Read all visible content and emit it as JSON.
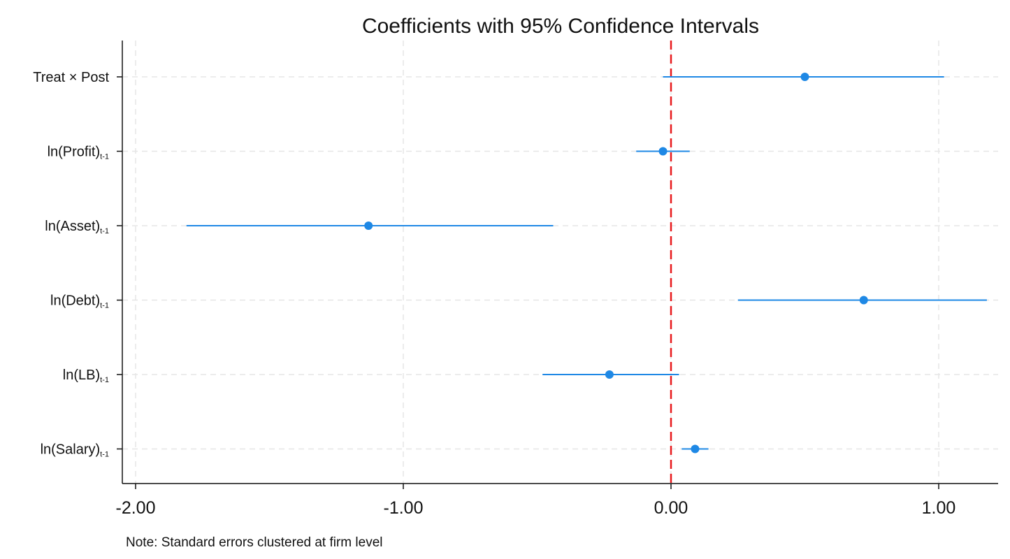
{
  "chart_data": {
    "type": "scatter",
    "subtype": "coefficient-plot",
    "orientation": "horizontal",
    "title": "Coefficients with 95% Confidence Intervals",
    "note": "Note: Standard errors clustered at firm level",
    "xlim": [
      -2.05,
      1.22
    ],
    "x_ticks": [
      {
        "value": -2.0,
        "label": "-2.00"
      },
      {
        "value": -1.0,
        "label": "-1.00"
      },
      {
        "value": 0.0,
        "label": "0.00"
      },
      {
        "value": 1.0,
        "label": "1.00"
      }
    ],
    "reference_line": {
      "x": 0.0,
      "color": "#e8191c",
      "style": "dashed"
    },
    "grid": true,
    "colors": {
      "estimate": "#1e88e5",
      "ci": "#1e88e5",
      "grid": "#e6e6e6",
      "axis": "#111111"
    },
    "categories": [
      {
        "main": "Treat × Post",
        "sub": ""
      },
      {
        "main": "ln(Profit)",
        "sub": "t-1"
      },
      {
        "main": "ln(Asset)",
        "sub": "t-1"
      },
      {
        "main": "ln(Debt)",
        "sub": "t-1"
      },
      {
        "main": "ln(LB)",
        "sub": "t-1"
      },
      {
        "main": "ln(Salary)",
        "sub": "t-1"
      }
    ],
    "estimates": [
      0.5,
      -0.03,
      -1.13,
      0.72,
      -0.23,
      0.09
    ],
    "ci_low": [
      -0.03,
      -0.13,
      -1.81,
      0.25,
      -0.48,
      0.04
    ],
    "ci_high": [
      1.02,
      0.07,
      -0.44,
      1.18,
      0.03,
      0.14
    ]
  }
}
